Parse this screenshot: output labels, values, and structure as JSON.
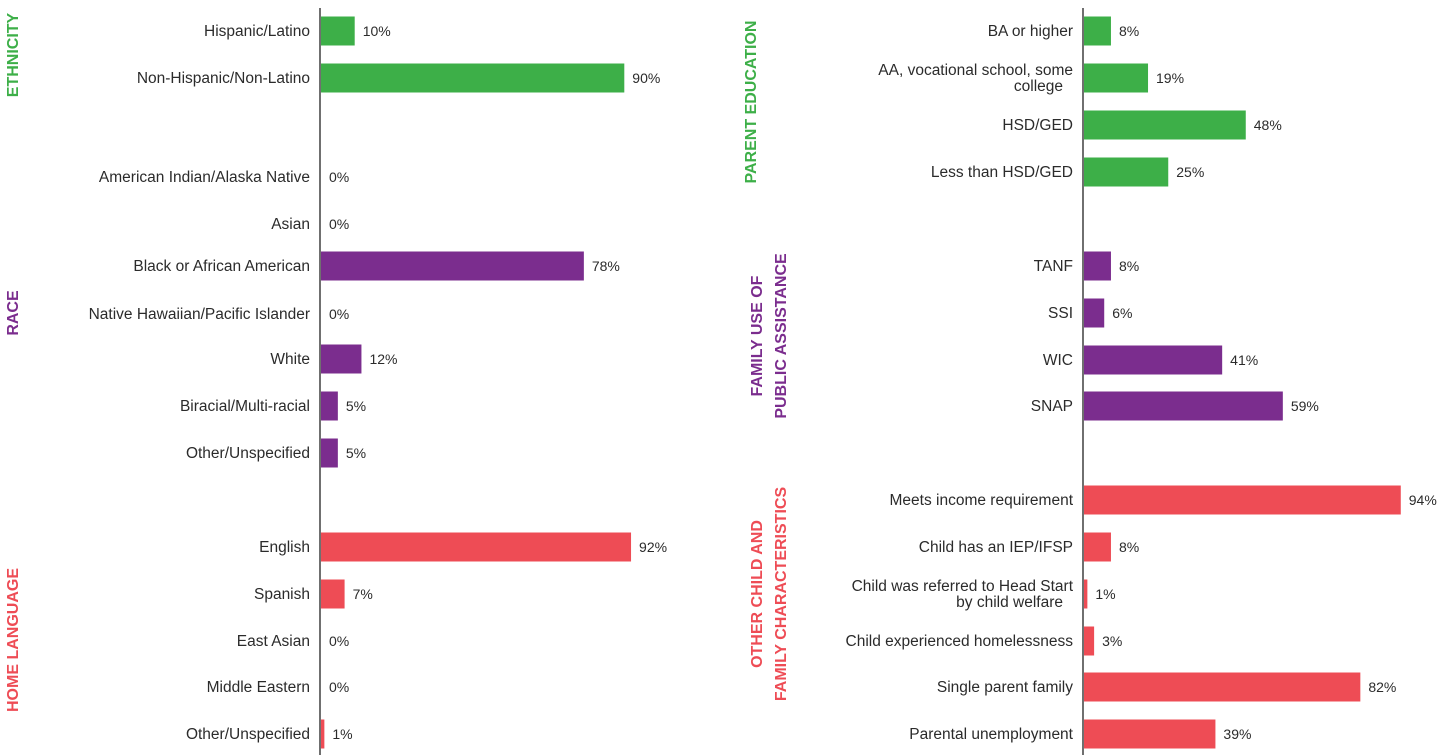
{
  "colors": {
    "green": "#3daf48",
    "purple": "#7b2d8e",
    "red": "#ee4c55"
  },
  "chart_data": [
    {
      "type": "bar",
      "orientation": "horizontal",
      "xlim": [
        0,
        100
      ],
      "unit": "%",
      "groups": [
        {
          "title": "ETHNICITY",
          "color": "#3daf48",
          "categories": [
            "Hispanic/Latino",
            "Non-Hispanic/Non-Latino"
          ],
          "values": [
            10,
            90
          ]
        },
        {
          "title": "RACE",
          "color": "#7b2d8e",
          "categories": [
            "American Indian/Alaska Native",
            "Asian",
            "Black or African American",
            "Native Hawaiian/Pacific Islander",
            "White",
            "Biracial/Multi-racial",
            "Other/Unspecified"
          ],
          "values": [
            0,
            0,
            78,
            0,
            12,
            5,
            5
          ]
        },
        {
          "title": "HOME LANGUAGE",
          "color": "#ee4c55",
          "categories": [
            "English",
            "Spanish",
            "East Asian",
            "Middle Eastern",
            "Other/Unspecified"
          ],
          "values": [
            92,
            7,
            0,
            0,
            1
          ]
        }
      ]
    },
    {
      "type": "bar",
      "orientation": "horizontal",
      "xlim": [
        0,
        100
      ],
      "unit": "%",
      "groups": [
        {
          "title": "PARENT EDUCATION",
          "color": "#3daf48",
          "categories": [
            "BA or higher",
            "AA, vocational school, some college",
            "HSD/GED",
            "Less than HSD/GED"
          ],
          "values": [
            8,
            19,
            48,
            25
          ]
        },
        {
          "title": "FAMILY USE OF PUBLIC ASSISTANCE",
          "color": "#7b2d8e",
          "categories": [
            "TANF",
            "SSI",
            "WIC",
            "SNAP"
          ],
          "values": [
            8,
            6,
            41,
            59
          ]
        },
        {
          "title": "OTHER CHILD AND FAMILY CHARACTERISTICS",
          "color": "#ee4c55",
          "categories": [
            "Meets income requirement",
            "Child has an IEP/IFSP",
            "Child was referred to Head Start by child welfare",
            "Child experienced homelessness",
            "Single parent family",
            "Parental unemployment"
          ],
          "values": [
            94,
            8,
            1,
            3,
            82,
            39
          ]
        }
      ]
    }
  ]
}
